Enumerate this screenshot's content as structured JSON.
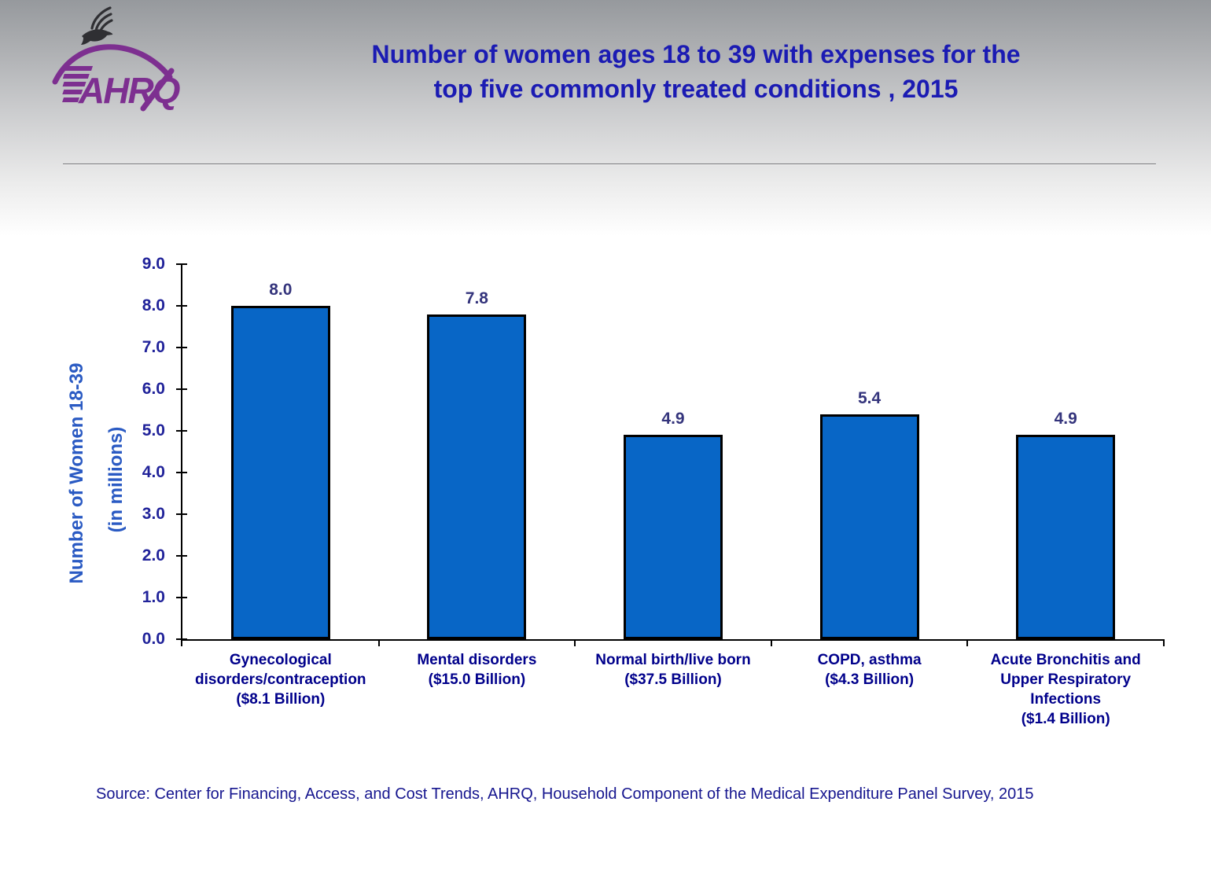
{
  "slide": {
    "title_line1": "Number of women ages 18 to 39 with expenses for the",
    "title_line2": "top five commonly treated conditions , 2015",
    "source": "Source: Center for Financing, Access, and Cost Trends, AHRQ, Household Component of the Medical Expenditure Panel Survey, 2015",
    "logo_org": "AHRQ"
  },
  "chart_data": {
    "type": "bar",
    "title": "Number of women ages 18 to 39 with expenses for the top five commonly treated conditions , 2015",
    "xlabel": "",
    "ylabel_line1": "Number of Women 18-39",
    "ylabel_line2": "(in millions)",
    "ylim": [
      0,
      9
    ],
    "ytick_step": 1.0,
    "ytick_labels": [
      "0.0",
      "1.0",
      "2.0",
      "3.0",
      "4.0",
      "5.0",
      "6.0",
      "7.0",
      "8.0",
      "9.0"
    ],
    "grid": false,
    "legend": null,
    "categories": [
      "Gynecological disorders/contraception ($8.1 Billion)",
      "Mental disorders ($15.0 Billion)",
      "Normal birth/live born ($37.5 Billion)",
      "COPD, asthma ($4.3 Billion)",
      "Acute Bronchitis and Upper Respiratory Infections ($1.4 Billion)"
    ],
    "category_lines": [
      [
        "Gynecological",
        "disorders/contraception",
        "($8.1 Billion)"
      ],
      [
        "Mental disorders",
        "($15.0 Billion)"
      ],
      [
        "Normal birth/live born",
        "($37.5 Billion)"
      ],
      [
        "COPD, asthma",
        "($4.3 Billion)"
      ],
      [
        "Acute Bronchitis and",
        "Upper Respiratory",
        "Infections",
        "($1.4 Billion)"
      ]
    ],
    "values": [
      8.0,
      7.8,
      4.9,
      5.4,
      4.9
    ],
    "value_labels": [
      "8.0",
      "7.8",
      "4.9",
      "5.4",
      "4.9"
    ]
  },
  "colors": {
    "bar_fill": "#0866c6",
    "bar_border": "#000000",
    "axis_line": "#000000",
    "title": "#1b1bb3",
    "axis_title": "#2a5ac3",
    "tick_label": "#21239a",
    "value_label": "#34347c",
    "category_label": "#00008b",
    "source": "#16168f",
    "logo_purple": "#7d2f90",
    "eagle": "#2f2f33"
  }
}
